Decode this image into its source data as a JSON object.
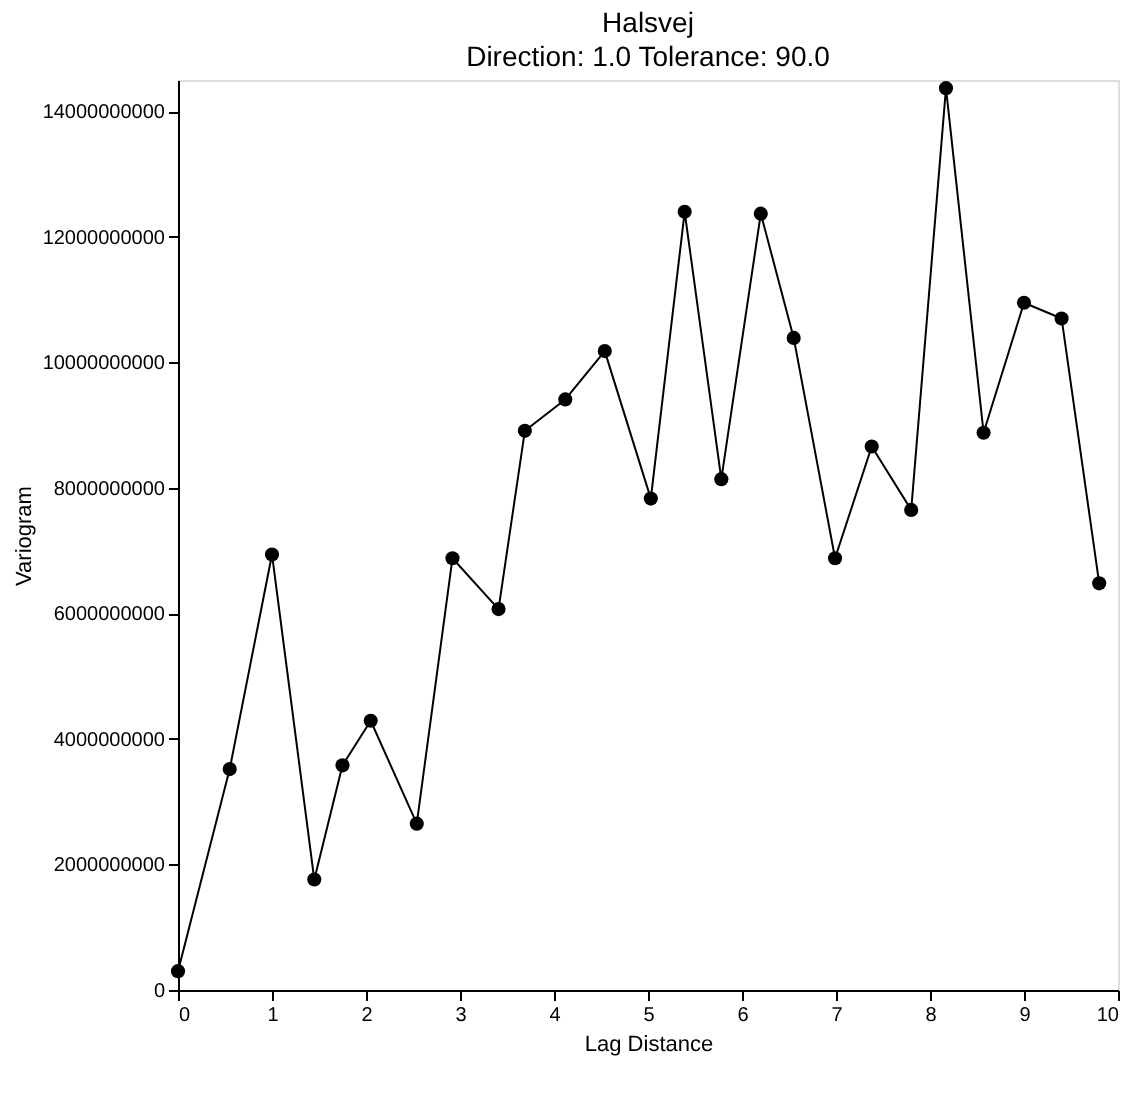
{
  "chart_data": {
    "type": "line",
    "title": "Halsvej",
    "subtitle": "Direction: 1.0   Tolerance: 90.0",
    "xlabel": "Lag Distance",
    "ylabel": "Variogram",
    "x": [
      0.0,
      0.55,
      1.0,
      1.45,
      1.75,
      2.05,
      2.54,
      2.92,
      3.41,
      3.69,
      4.12,
      4.54,
      5.03,
      5.39,
      5.78,
      6.2,
      6.55,
      6.99,
      7.38,
      7.8,
      8.17,
      8.57,
      9.0,
      9.4,
      9.8
    ],
    "series": [
      {
        "color": "#000000",
        "values": [
          300000000,
          3520000000,
          6940000000,
          1760000000,
          3580000000,
          4290000000,
          2650000000,
          6880000000,
          6070000000,
          8910000000,
          9410000000,
          10180000000,
          7830000000,
          12400000000,
          8140000000,
          12370000000,
          10390000000,
          6880000000,
          8660000000,
          7650000000,
          14370000000,
          8880000000,
          10950000000,
          10700000000,
          6480000000
        ]
      }
    ],
    "xlim": [
      0,
      10
    ],
    "xticks": [
      0,
      1,
      2,
      3,
      4,
      5,
      6,
      7,
      8,
      9,
      10
    ],
    "ylim": [
      0,
      14500000000
    ],
    "yticks": [
      0,
      2000000000,
      4000000000,
      6000000000,
      8000000000,
      10000000000,
      12000000000,
      14000000000
    ],
    "marker": "circle",
    "line_style": "solid",
    "grid": false
  }
}
